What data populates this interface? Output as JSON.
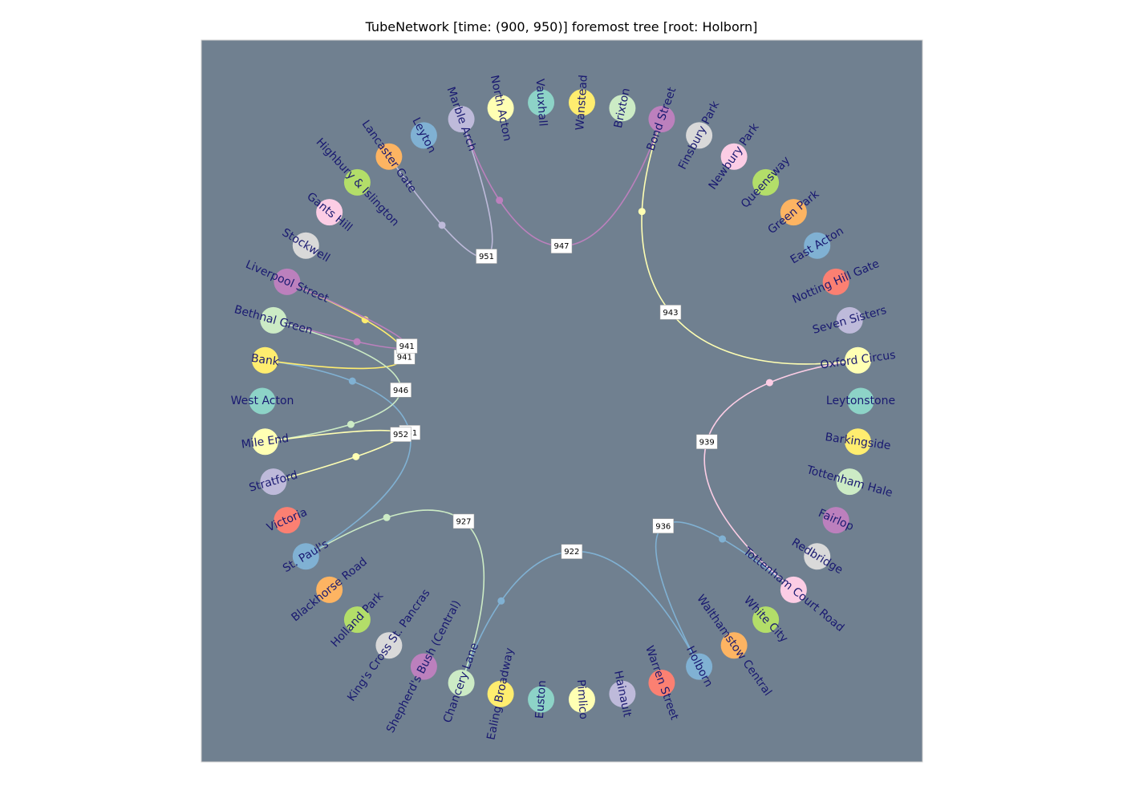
{
  "title": "TubeNetwork [time: (900, 950)] foremost tree [root: Holborn]",
  "colors": {
    "background": "#708090",
    "label": "#191970",
    "palette": [
      "#8dd3c7",
      "#ffffb3",
      "#bebada",
      "#fb8072",
      "#80b1d3",
      "#fdb462",
      "#b3de69",
      "#fccde5",
      "#d9d9d9",
      "#bc80bd",
      "#ccebc5",
      "#ffed6f"
    ]
  },
  "nodes": [
    {
      "name": "Leytonstone",
      "color": "#8dd3c7"
    },
    {
      "name": "Oxford Circus",
      "color": "#ffffb3"
    },
    {
      "name": "Seven Sisters",
      "color": "#bebada"
    },
    {
      "name": "Notting Hill Gate",
      "color": "#fb8072"
    },
    {
      "name": "East Acton",
      "color": "#80b1d3"
    },
    {
      "name": "Green Park",
      "color": "#fdb462"
    },
    {
      "name": "Queensway",
      "color": "#b3de69"
    },
    {
      "name": "Newbury Park",
      "color": "#fccde5"
    },
    {
      "name": "Finsbury Park",
      "color": "#d9d9d9"
    },
    {
      "name": "Bond Street",
      "color": "#bc80bd"
    },
    {
      "name": "Brixton",
      "color": "#ccebc5"
    },
    {
      "name": "Wanstead",
      "color": "#ffed6f"
    },
    {
      "name": "Vauxhall",
      "color": "#8dd3c7"
    },
    {
      "name": "North Acton",
      "color": "#ffffb3"
    },
    {
      "name": "Marble Arch",
      "color": "#bebada"
    },
    {
      "name": "Leyton",
      "color": "#80b1d3"
    },
    {
      "name": "Lancaster Gate",
      "color": "#fdb462"
    },
    {
      "name": "Highbury & Islington",
      "color": "#b3de69"
    },
    {
      "name": "Gants Hill",
      "color": "#fccde5"
    },
    {
      "name": "Stockwell",
      "color": "#d9d9d9"
    },
    {
      "name": "Liverpool Street",
      "color": "#bc80bd"
    },
    {
      "name": "Bethnal Green",
      "color": "#ccebc5"
    },
    {
      "name": "Bank",
      "color": "#ffed6f"
    },
    {
      "name": "West Acton",
      "color": "#8dd3c7"
    },
    {
      "name": "Mile End",
      "color": "#ffffb3"
    },
    {
      "name": "Stratford",
      "color": "#bebada"
    },
    {
      "name": "Victoria",
      "color": "#fb8072"
    },
    {
      "name": "St. Paul's",
      "color": "#80b1d3"
    },
    {
      "name": "Blackhorse Road",
      "color": "#fdb462"
    },
    {
      "name": "Holland Park",
      "color": "#b3de69"
    },
    {
      "name": "King's Cross St. Pancras",
      "color": "#d9d9d9"
    },
    {
      "name": "Shepherd's Bush (Central)",
      "color": "#bc80bd"
    },
    {
      "name": "Chancery Lane",
      "color": "#ccebc5"
    },
    {
      "name": "Ealing Broadway",
      "color": "#ffed6f"
    },
    {
      "name": "Euston",
      "color": "#8dd3c7"
    },
    {
      "name": "Pimlico",
      "color": "#ffffb3"
    },
    {
      "name": "Hainault",
      "color": "#bebada"
    },
    {
      "name": "Warren Street",
      "color": "#fb8072"
    },
    {
      "name": "Holborn",
      "color": "#80b1d3"
    },
    {
      "name": "Walthamstow Central",
      "color": "#fdb462"
    },
    {
      "name": "White City",
      "color": "#b3de69"
    },
    {
      "name": "Tottenham Court Road",
      "color": "#fccde5"
    },
    {
      "name": "Redbridge",
      "color": "#d9d9d9"
    },
    {
      "name": "Fairlop",
      "color": "#bc80bd"
    },
    {
      "name": "Tottenham Hale",
      "color": "#ccebc5"
    },
    {
      "name": "Barkingside",
      "color": "#ffed6f"
    }
  ],
  "edges": [
    {
      "from": "Holborn",
      "to": "Chancery Lane",
      "time": "922",
      "color": "#80b1d3"
    },
    {
      "from": "Holborn",
      "to": "Tottenham Court Road",
      "time": "936",
      "color": "#80b1d3"
    },
    {
      "from": "Chancery Lane",
      "to": "St. Paul's",
      "time": "927",
      "color": "#ccebc5"
    },
    {
      "from": "St. Paul's",
      "to": "Bank",
      "time": "931",
      "color": "#80b1d3"
    },
    {
      "from": "Tottenham Court Road",
      "to": "Oxford Circus",
      "time": "939",
      "color": "#fccde5"
    },
    {
      "from": "Bank",
      "to": "Liverpool Street",
      "time": "941",
      "color": "#ffed6f"
    },
    {
      "from": "Oxford Circus",
      "to": "Bond Street",
      "time": "943",
      "color": "#ffffb3"
    },
    {
      "from": "Liverpool Street",
      "to": "Bethnal Green",
      "time": "941",
      "color": "#bc80bd"
    },
    {
      "from": "Bethnal Green",
      "to": "Mile End",
      "time": "946",
      "color": "#ccebc5"
    },
    {
      "from": "Bond Street",
      "to": "Marble Arch",
      "time": "947",
      "color": "#bc80bd"
    },
    {
      "from": "Marble Arch",
      "to": "Lancaster Gate",
      "time": "951",
      "color": "#bebada"
    },
    {
      "from": "Mile End",
      "to": "Stratford",
      "time": "952",
      "color": "#ffffb3"
    }
  ]
}
